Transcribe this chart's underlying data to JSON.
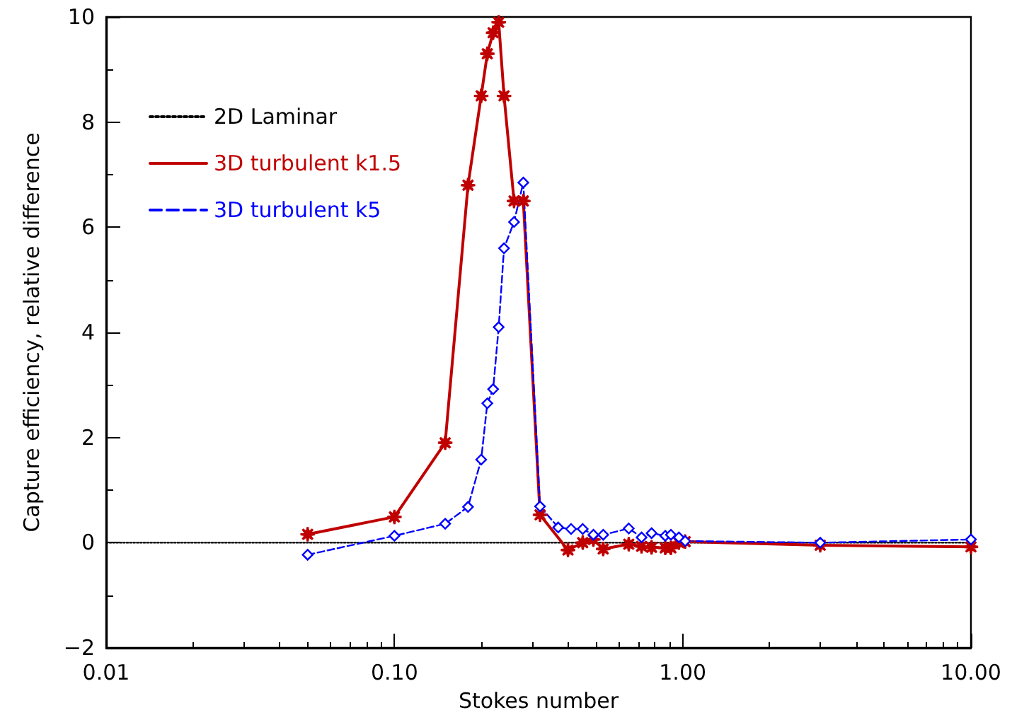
{
  "chart_data": {
    "type": "line",
    "xlabel": "Stokes number",
    "ylabel": "Capture efficiency, relative difference",
    "log": "x",
    "xlim": [
      0.01,
      10
    ],
    "xticks": [
      {
        "value": 0.01,
        "label": "0.01"
      },
      {
        "value": 0.1,
        "label": "0.10"
      },
      {
        "value": 1,
        "label": "1.00"
      },
      {
        "value": 10,
        "label": "10.00"
      }
    ],
    "ylim": [
      -2,
      10
    ],
    "yticks": [
      {
        "value": -2,
        "label": "−2"
      },
      0,
      2,
      4,
      6,
      8,
      10
    ],
    "grid": false,
    "legend": "top left",
    "series": [
      {
        "name": "2D Laminar",
        "color": "#000000",
        "line_style": "dotted",
        "marker": "none",
        "x": [
          0.01,
          10
        ],
        "values": [
          0,
          0
        ]
      },
      {
        "name": "3D turbulent k1.5",
        "color": "#c00000",
        "line_style": "solid",
        "marker": "star",
        "x": [
          0.05,
          0.1,
          0.15,
          0.18,
          0.2,
          0.21,
          0.22,
          0.23,
          0.24,
          0.26,
          0.28,
          0.32,
          0.4,
          0.45,
          0.49,
          0.53,
          0.65,
          0.72,
          0.78,
          0.87,
          0.91,
          0.97,
          1.02,
          3,
          10
        ],
        "values": [
          0.16,
          0.49,
          1.9,
          6.8,
          8.5,
          9.3,
          9.7,
          9.9,
          8.5,
          6.5,
          6.5,
          0.53,
          -0.14,
          0,
          0.06,
          -0.12,
          -0.03,
          -0.07,
          -0.09,
          -0.1,
          -0.1,
          0,
          0.02,
          -0.05,
          -0.08
        ]
      },
      {
        "name": "3D turbulent k5",
        "color": "#0000ff",
        "line_style": "dashed",
        "marker": "diamond",
        "x": [
          0.05,
          0.1,
          0.15,
          0.18,
          0.2,
          0.21,
          0.22,
          0.23,
          0.24,
          0.26,
          0.28,
          0.32,
          0.37,
          0.41,
          0.45,
          0.49,
          0.53,
          0.65,
          0.72,
          0.78,
          0.87,
          0.91,
          0.97,
          1.02,
          3,
          10
        ],
        "values": [
          -0.23,
          0.13,
          0.36,
          0.68,
          1.58,
          2.65,
          2.92,
          4.1,
          5.6,
          6.1,
          6.85,
          0.69,
          0.29,
          0.26,
          0.26,
          0.15,
          0.15,
          0.27,
          0.1,
          0.18,
          0.13,
          0.15,
          0.1,
          0.03,
          0,
          0.06
        ]
      }
    ]
  }
}
